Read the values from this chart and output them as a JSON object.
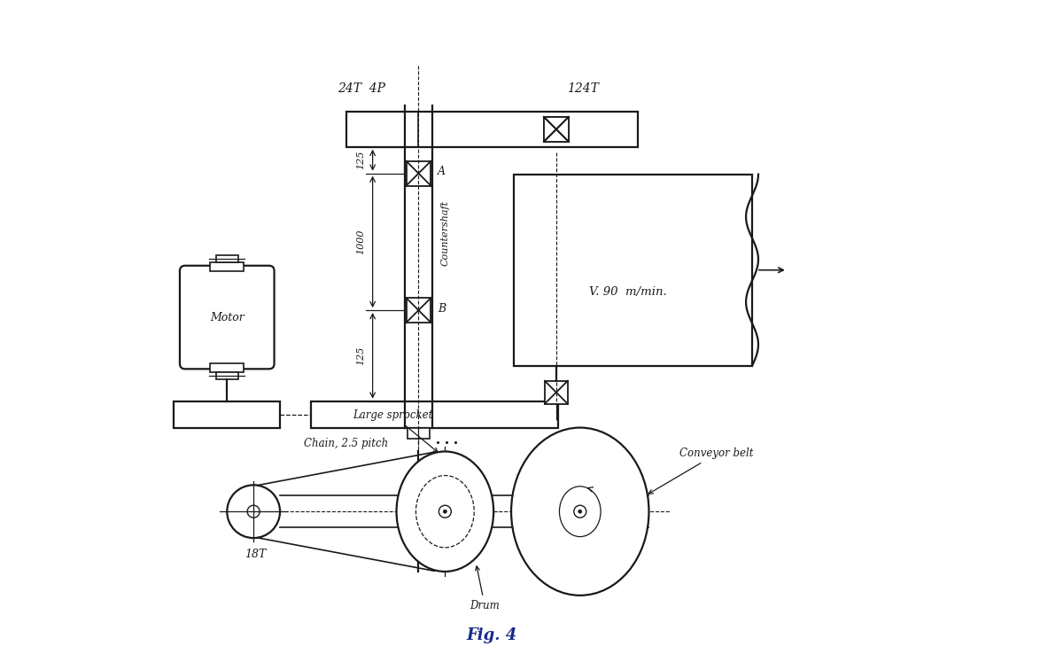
{
  "bg_color": "#ffffff",
  "line_color": "#1a1a1a",
  "fig_width": 11.83,
  "fig_height": 7.38,
  "title": "Fig. 4",
  "label_24T_4P": "24T  4P",
  "label_124T": "124T",
  "label_125_top": "125",
  "label_1000": "1000",
  "label_125_bot": "125",
  "label_A": "A",
  "label_B": "B",
  "label_countershaft": "Countershaft",
  "label_motor": "Motor",
  "label_chain": "Chain, 2.5 pitch",
  "label_large_sprocket": "Large sprocket",
  "label_18T": "18T",
  "label_drum": "Drum",
  "label_conveyor_belt": "Conveyor belt",
  "label_v": "V. 90  m/min."
}
